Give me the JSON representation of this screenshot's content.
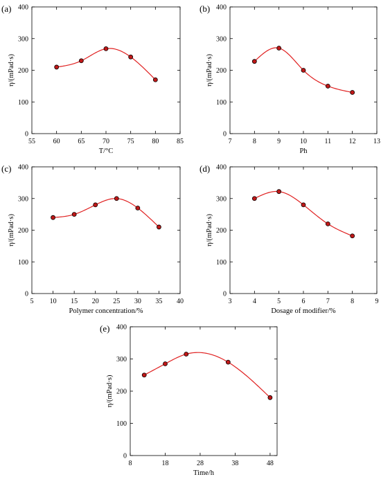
{
  "colors": {
    "line": "#e02020",
    "marker_fill": "#c01818",
    "marker_edge": "#000000",
    "axis": "#000000"
  },
  "chart_data": [
    {
      "type": "line",
      "panel_label": "(a)",
      "xlabel": "T/°C",
      "ylabel": "η/(mPad·s)",
      "xlim": [
        55,
        85
      ],
      "ylim": [
        0,
        400
      ],
      "xticks": [
        55,
        60,
        65,
        70,
        75,
        80,
        85
      ],
      "yticks": [
        0,
        100,
        200,
        300,
        400
      ],
      "x": [
        60,
        65,
        70,
        75,
        80
      ],
      "y": [
        210,
        230,
        268,
        242,
        170
      ],
      "grid": false
    },
    {
      "type": "line",
      "panel_label": "(b)",
      "xlabel": "Ph",
      "ylabel": "η/(mPad·s)",
      "xlim": [
        7,
        13
      ],
      "ylim": [
        0,
        400
      ],
      "xticks": [
        7,
        8,
        9,
        10,
        11,
        12,
        13
      ],
      "yticks": [
        0,
        100,
        200,
        300,
        400
      ],
      "x": [
        8,
        9,
        10,
        11,
        12
      ],
      "y": [
        228,
        270,
        200,
        150,
        130
      ],
      "grid": false
    },
    {
      "type": "line",
      "panel_label": "(c)",
      "xlabel": "Polymer concentration/%",
      "ylabel": "η/(mPad·s)",
      "xlim": [
        5,
        40
      ],
      "ylim": [
        0,
        400
      ],
      "xticks": [
        5,
        10,
        15,
        20,
        25,
        30,
        35,
        40
      ],
      "yticks": [
        0,
        100,
        200,
        300,
        400
      ],
      "x": [
        10,
        15,
        20,
        25,
        30,
        35
      ],
      "y": [
        240,
        250,
        280,
        300,
        270,
        210
      ],
      "grid": false
    },
    {
      "type": "line",
      "panel_label": "(d)",
      "xlabel": "Dosage of modifier/%",
      "ylabel": "η/(mPad·s)",
      "xlim": [
        3,
        9
      ],
      "ylim": [
        0,
        400
      ],
      "xticks": [
        3,
        4,
        5,
        6,
        7,
        8,
        9
      ],
      "yticks": [
        0,
        100,
        200,
        300,
        400
      ],
      "x": [
        4,
        5,
        6,
        7,
        8
      ],
      "y": [
        300,
        322,
        280,
        220,
        182
      ],
      "grid": false
    },
    {
      "type": "line",
      "panel_label": "(e)",
      "xlabel": "Time/h",
      "ylabel": "η/(mPad·s)",
      "xlim": [
        8,
        50
      ],
      "ylim": [
        0,
        400
      ],
      "xticks": [
        8,
        18,
        28,
        38,
        48
      ],
      "yticks": [
        0,
        100,
        200,
        300,
        400
      ],
      "x": [
        12,
        18,
        24,
        36,
        48
      ],
      "y": [
        250,
        285,
        315,
        290,
        180
      ],
      "grid": false
    }
  ]
}
